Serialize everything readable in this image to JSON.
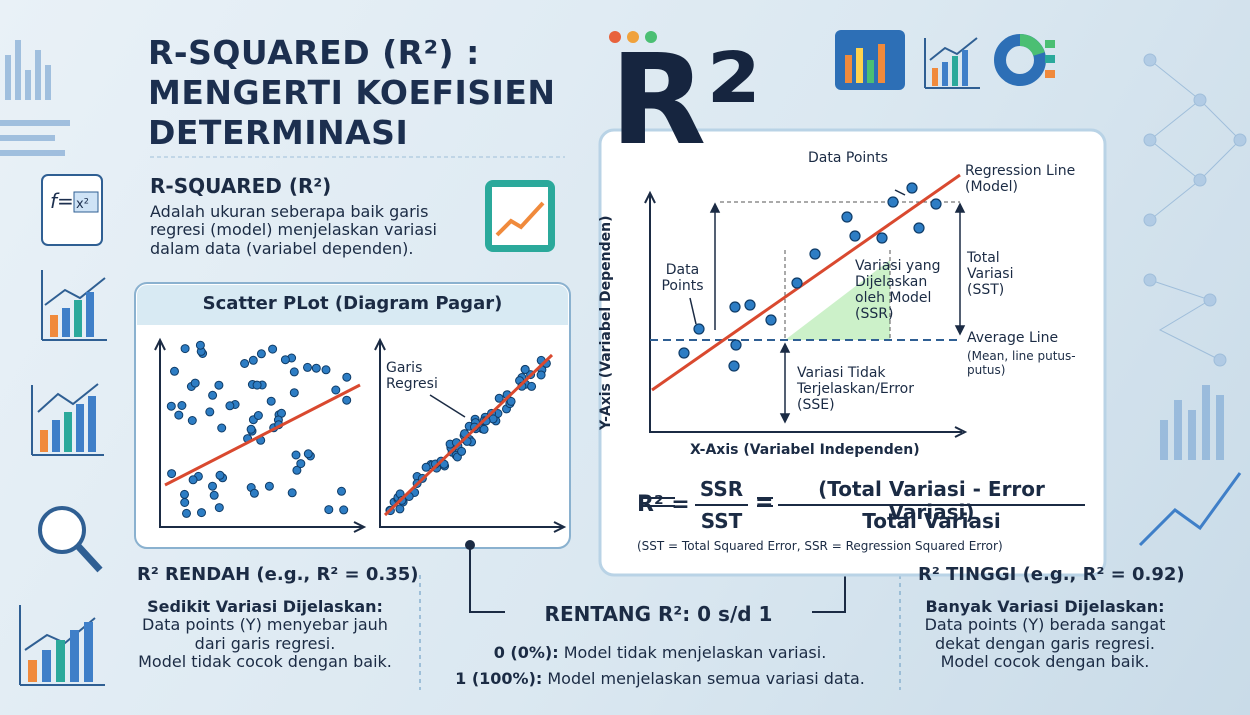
{
  "title": [
    "R-SQUARED (R²) :",
    "MENGERTI KOEFISIEN",
    "DETERMINASI"
  ],
  "definition": {
    "heading": "R-SQUARED (R²)",
    "text": "Adalah ukuran seberapa baik garis regresi (model) menjelaskan variasi dalam data (variabel dependen)."
  },
  "scatter_panel": {
    "title": "Scatter PLot (Diagram Pagar)",
    "annotation": "Garis Regresi"
  },
  "low": {
    "heading": "R² RENDAH (e.g., R² = 0.35)",
    "subheading": "Sedikit Variasi Dijelaskan:",
    "lines": [
      "Data points (Y) menyebar jauh",
      "dari garis regresi.",
      "Model tidak cocok dengan baik."
    ]
  },
  "range": {
    "heading": "RENTANG R²: 0 s/d 1",
    "items": [
      {
        "label": "0 (0%):",
        "text": "Model tidak menjelaskan variasi."
      },
      {
        "label": "1 (100%):",
        "text": "Model menjelaskan semua variasi data."
      }
    ]
  },
  "high": {
    "heading": "R² TINGGI (e.g., R² = 0.92)",
    "subheading": "Banyak Variasi Dijelaskan:",
    "lines": [
      "Data points (Y) berada sangat",
      "dekat dengan garis regresi.",
      "Model cocok dengan baik."
    ]
  },
  "diagram": {
    "logo": "R²",
    "y_axis": "Y-Axis (Variabel Dependen)",
    "x_axis": "X-Axis (Variabel Independen)",
    "data_points_top": "Data Points",
    "regression_line": "Regression Line (Model)",
    "data_points_left": "Data Points",
    "ssr": "Variasi yang Dijelaskan oleh Model (SSR)",
    "sst": "Total Variasi (SST)",
    "average_line": "Average Line",
    "average_note": "(Mean, line putus-putus)",
    "sse": "Variasi Tidak Terjelaskan/Error (SSE)"
  },
  "formula": {
    "lhs": "R² =",
    "num1": "SSR",
    "den1": "SST",
    "eq": "=",
    "num2": "(Total Variasi - Error Variasi)",
    "den2": "Total Variasi",
    "note": "(SST = Total Squared Error, SSR = Regression Squared Error)"
  }
}
